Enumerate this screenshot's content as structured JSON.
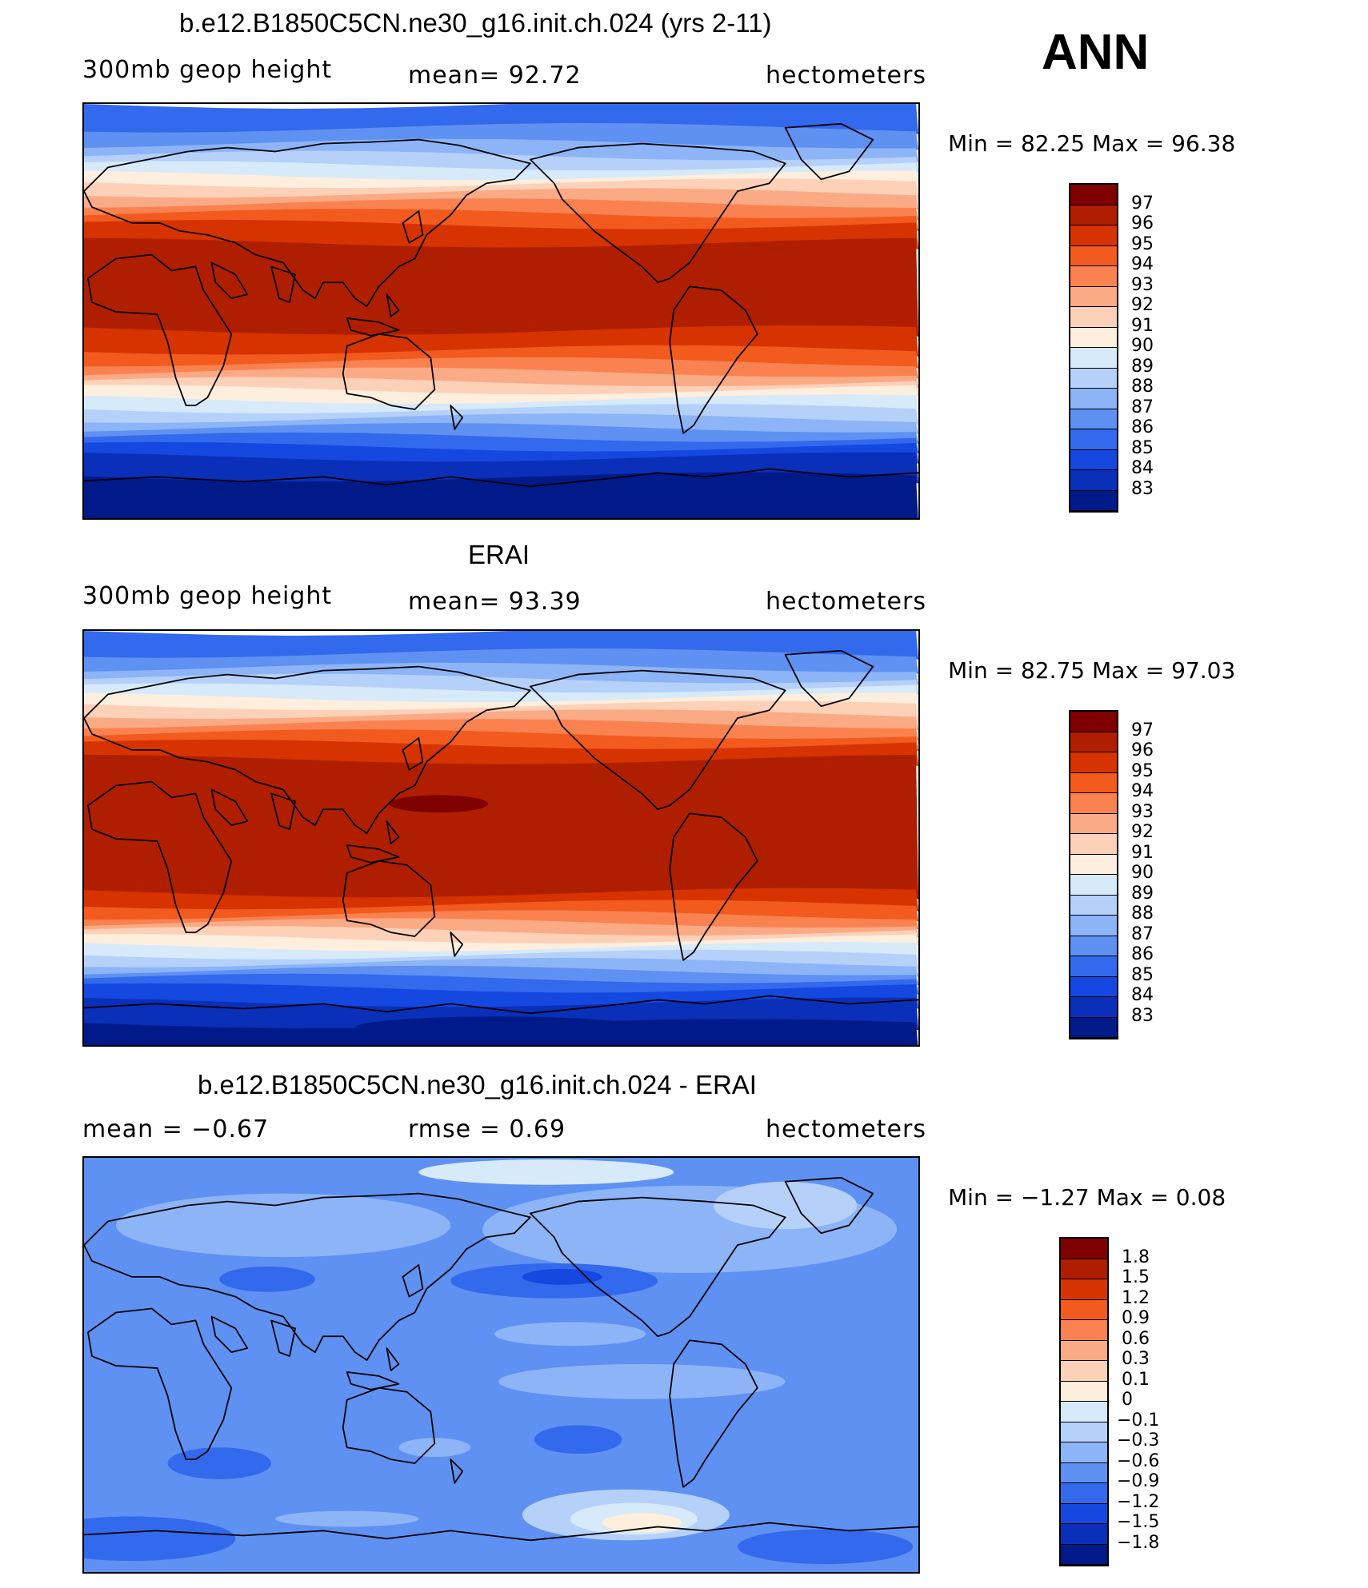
{
  "season": "ANN",
  "panels": [
    {
      "id": "model",
      "title": "b.e12.B1850C5CN.ne30_g16.init.ch.024 (yrs 2-11)",
      "variable": "300mb  geop  height",
      "mean_text": "mean=   92.72",
      "units": "hectometers",
      "minmax_text": "Min  =    82.25  Max  =    96.38",
      "colorbar_labels": [
        "97",
        "96",
        "95",
        "94",
        "93",
        "92",
        "91",
        "90",
        "89",
        "88",
        "87",
        "86",
        "85",
        "84",
        "83"
      ]
    },
    {
      "id": "obs",
      "title": "ERAI",
      "variable": "300mb  geop  height",
      "mean_text": "mean=   93.39",
      "units": "hectometers",
      "minmax_text": "Min  =    82.75  Max  =    97.03",
      "colorbar_labels": [
        "97",
        "96",
        "95",
        "94",
        "93",
        "92",
        "91",
        "90",
        "89",
        "88",
        "87",
        "86",
        "85",
        "84",
        "83"
      ]
    },
    {
      "id": "diff",
      "title": "b.e12.B1850C5CN.ne30_g16.init.ch.024 - ERAI",
      "variable": "mean  =    −0.67",
      "mean_text": "rmse  =     0.69",
      "units": "hectometers",
      "minmax_text": "Min  =    −1.27  Max  =     0.08",
      "colorbar_labels": [
        "1.8",
        "1.5",
        "1.2",
        "0.9",
        "0.6",
        "0.3",
        "0.1",
        "0",
        "−0.1",
        "−0.3",
        "−0.6",
        "−0.9",
        "−1.2",
        "−1.5",
        "−1.8"
      ]
    }
  ],
  "colors": {
    "scale": [
      "#7f0000",
      "#b01e00",
      "#d63300",
      "#f25a1e",
      "#fa8250",
      "#fbaa86",
      "#fdd0b8",
      "#fdeedd",
      "#d7eafa",
      "#b5d1fa",
      "#8cb4f7",
      "#5e91f2",
      "#3369ec",
      "#1448e0",
      "#0a2fb8",
      "#001a8a"
    ],
    "land_outline": "#000000"
  }
}
